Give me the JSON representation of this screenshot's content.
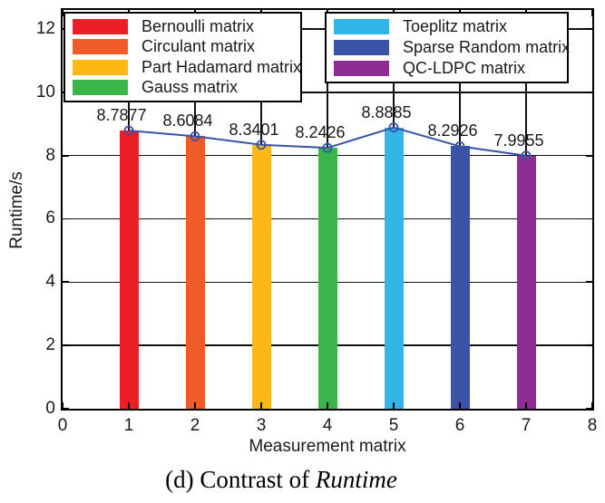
{
  "chart_data": {
    "type": "bar",
    "title": "",
    "xlabel": "Measurement matrix",
    "ylabel": "Runtime/s",
    "xlim": [
      0,
      8
    ],
    "ylim": [
      0,
      12.6
    ],
    "xticks": [
      "0",
      "1",
      "2",
      "3",
      "4",
      "5",
      "6",
      "7",
      "8"
    ],
    "yticks": [
      "0",
      "2",
      "4",
      "6",
      "8",
      "10",
      "12"
    ],
    "grid": "on",
    "categories": [
      1,
      2,
      3,
      4,
      5,
      6,
      7
    ],
    "series": [
      {
        "name": "Bernoulli matrix",
        "value": 8.7877,
        "label": "8.7877",
        "color": "#EC1F27"
      },
      {
        "name": "Circulant matrix",
        "value": 8.6084,
        "label": "8.6084",
        "color": "#F15A29"
      },
      {
        "name": "Part Hadamard matrix",
        "value": 8.3401,
        "label": "8.3401",
        "color": "#FDB913"
      },
      {
        "name": "Gauss matrix",
        "value": 8.2426,
        "label": "8.2426",
        "color": "#3AB54A"
      },
      {
        "name": "Toeplitz matrix",
        "value": 8.8885,
        "label": "8.8885",
        "color": "#33B5E8"
      },
      {
        "name": "Sparse Random matrix",
        "value": 8.2926,
        "label": "8.2926",
        "color": "#3A53A4"
      },
      {
        "name": "QC-LDPC matrix",
        "value": 7.9955,
        "label": "7.9955",
        "color": "#8E2E93"
      }
    ],
    "overlay_line": {
      "type": "line-with-circle-markers",
      "color": "#3A53A8"
    },
    "legend_left_series": [
      0,
      1,
      2,
      3
    ],
    "legend_right_series": [
      4,
      5,
      6
    ]
  },
  "caption": {
    "prefix": "(d) Contrast of ",
    "italic": "Runtime"
  }
}
